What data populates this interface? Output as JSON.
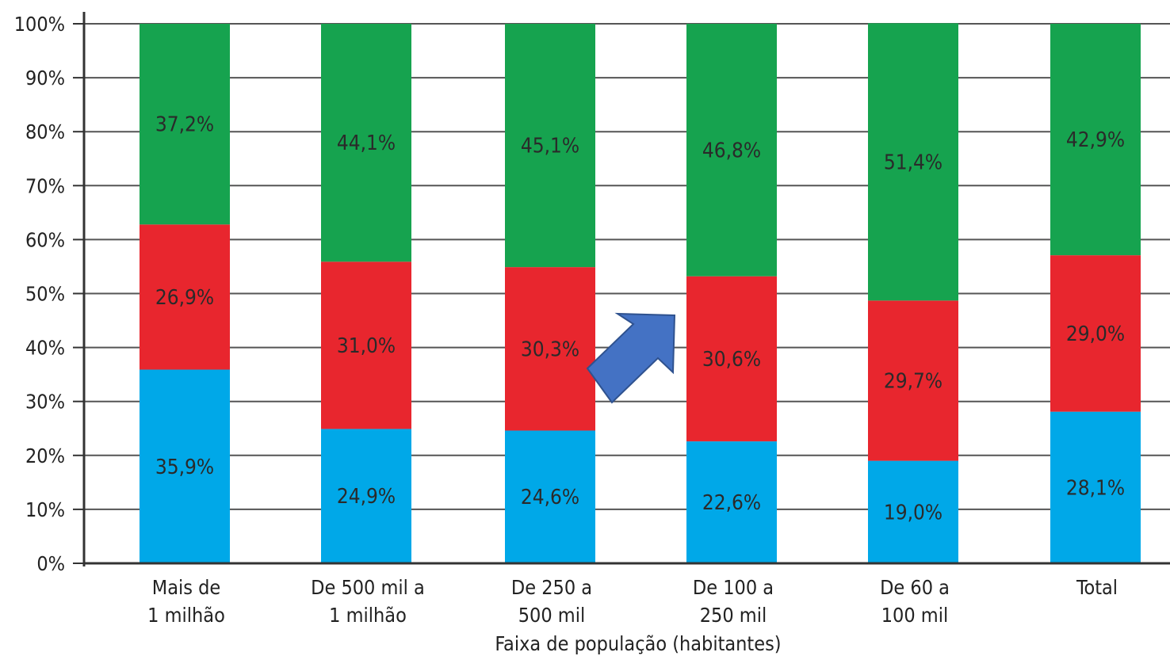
{
  "chart_data": {
    "type": "bar",
    "stacked": true,
    "title": "",
    "xlabel": "Faixa de população (habitantes)",
    "ylabel": "",
    "ylim": [
      0,
      100
    ],
    "yticks": [
      "0%",
      "10%",
      "20%",
      "30%",
      "40%",
      "50%",
      "60%",
      "70%",
      "80%",
      "90%",
      "100%"
    ],
    "grid": true,
    "legend": "none",
    "categories": [
      [
        "Mais de",
        "1 milhão"
      ],
      [
        "De 500 mil a",
        "1 milhão"
      ],
      [
        "De 250 a",
        "500 mil"
      ],
      [
        "De 100 a",
        "250 mil"
      ],
      [
        "De 60 a",
        "100 mil"
      ],
      [
        "Total"
      ]
    ],
    "series": [
      {
        "color": "#00a8e8",
        "values": [
          35.9,
          24.9,
          24.6,
          22.6,
          19.0,
          28.1
        ],
        "labels": [
          "35,9%",
          "24,9%",
          "24,6%",
          "22,6%",
          "19,0%",
          "28,1%"
        ]
      },
      {
        "color": "#e8262e",
        "values": [
          26.9,
          31.0,
          30.3,
          30.6,
          29.7,
          29.0
        ],
        "labels": [
          "26,9%",
          "31,0%",
          "30,3%",
          "30,6%",
          "29,7%",
          "29,0%"
        ]
      },
      {
        "color": "#16a34f",
        "values": [
          37.2,
          44.1,
          45.1,
          46.8,
          51.4,
          42.9
        ],
        "labels": [
          "37,2%",
          "44,1%",
          "45,1%",
          "46,8%",
          "51,4%",
          "42,9%"
        ]
      }
    ],
    "annotations": [
      {
        "shape": "arrow",
        "direction": "up-right",
        "color": "#4472c4",
        "points_to": "De 100 a 250 mil"
      }
    ]
  }
}
